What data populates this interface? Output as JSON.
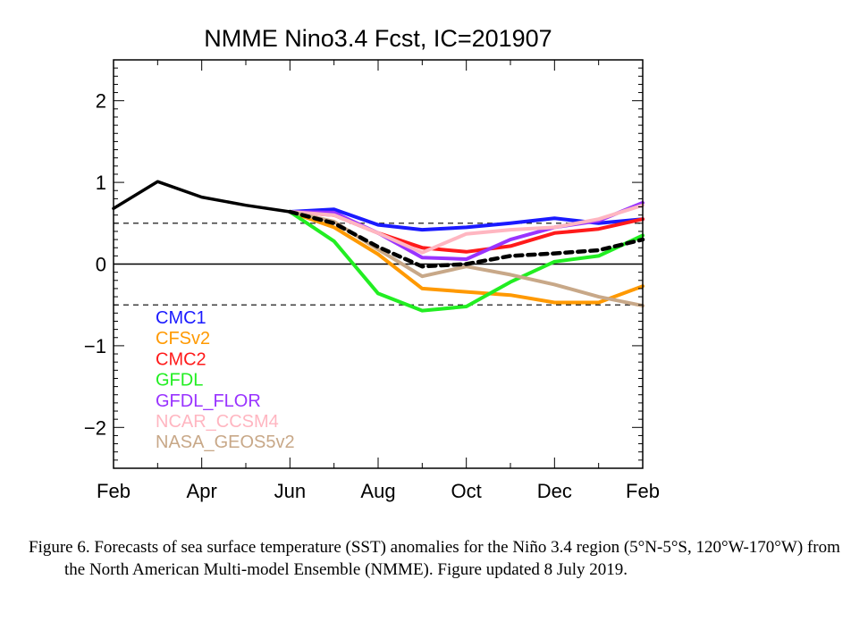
{
  "caption": "Figure 6. Forecasts of sea surface temperature (SST) anomalies for the Niño 3.4 region (5°N-5°S, 120°W-170°W) from the North American Multi-model Ensemble (NMME). Figure updated 8 July 2019.",
  "chart_data": {
    "type": "line",
    "title": "NMME Nino3.4 Fcst, IC=201907",
    "xlabel": "",
    "ylabel": "",
    "x_ticks": [
      "Feb",
      "Apr",
      "Jun",
      "Aug",
      "Oct",
      "Dec",
      "Feb"
    ],
    "x_tick_positions": [
      0,
      2,
      4,
      6,
      8,
      10,
      12
    ],
    "xlim": [
      0,
      12
    ],
    "ylim": [
      -2.5,
      2.5
    ],
    "y_ticks": [
      -2,
      -1,
      0,
      1,
      2
    ],
    "y_tick_labels": [
      "−2",
      "−1",
      "0",
      "1",
      "2"
    ],
    "reference_lines": [
      {
        "y": 0.5,
        "style": "dashed"
      },
      {
        "y": -0.5,
        "style": "dashed"
      },
      {
        "y": 0,
        "style": "solid"
      }
    ],
    "observed": {
      "x": [
        0,
        1,
        2,
        3,
        4
      ],
      "values": [
        0.68,
        1.01,
        0.82,
        0.72,
        0.64
      ],
      "color": "#000000"
    },
    "ensemble_mean": {
      "x": [
        4,
        5,
        6,
        7,
        8,
        9,
        10,
        11,
        12
      ],
      "values": [
        0.64,
        0.5,
        0.21,
        -0.03,
        0.0,
        0.1,
        0.13,
        0.17,
        0.3
      ],
      "color": "#000000",
      "style": "dashed"
    },
    "series": [
      {
        "name": "CMC1",
        "color": "#1a1aff",
        "x": [
          4,
          5,
          6,
          7,
          8,
          9,
          10,
          11,
          12
        ],
        "values": [
          0.64,
          0.67,
          0.48,
          0.42,
          0.45,
          0.5,
          0.56,
          0.5,
          0.55
        ]
      },
      {
        "name": "CFSv2",
        "color": "#ff9900",
        "x": [
          4,
          5,
          6,
          7,
          8,
          9,
          10,
          11,
          12
        ],
        "values": [
          0.64,
          0.45,
          0.12,
          -0.3,
          -0.34,
          -0.38,
          -0.47,
          -0.47,
          -0.27
        ]
      },
      {
        "name": "CMC2",
        "color": "#ff1a1a",
        "x": [
          4,
          5,
          6,
          7,
          8,
          9,
          10,
          11,
          12
        ],
        "values": [
          0.64,
          0.6,
          0.38,
          0.2,
          0.15,
          0.22,
          0.38,
          0.43,
          0.55
        ]
      },
      {
        "name": "GFDL",
        "color": "#22ee22",
        "x": [
          4,
          5,
          6,
          7,
          8,
          9,
          10,
          11,
          12
        ],
        "values": [
          0.64,
          0.28,
          -0.36,
          -0.57,
          -0.52,
          -0.22,
          0.03,
          0.1,
          0.35
        ]
      },
      {
        "name": "GFDL_FLOR",
        "color": "#9933ff",
        "x": [
          4,
          5,
          6,
          7,
          8,
          9,
          10,
          11,
          12
        ],
        "values": [
          0.64,
          0.63,
          0.38,
          0.08,
          0.06,
          0.3,
          0.45,
          0.53,
          0.75
        ]
      },
      {
        "name": "NCAR_CCSM4",
        "color": "#ffb6c1",
        "x": [
          4,
          5,
          6,
          7,
          8,
          9,
          10,
          11,
          12
        ],
        "values": [
          0.64,
          0.6,
          0.38,
          0.14,
          0.37,
          0.42,
          0.45,
          0.55,
          0.72
        ]
      },
      {
        "name": "NASA_GEOS5v2",
        "color": "#c8a888",
        "x": [
          4,
          5,
          6,
          7,
          8,
          9,
          10,
          11,
          12
        ],
        "values": [
          0.64,
          0.52,
          0.18,
          -0.15,
          -0.03,
          -0.13,
          -0.25,
          -0.4,
          -0.51
        ]
      }
    ],
    "legend_position": "lower-left",
    "grid": false
  }
}
